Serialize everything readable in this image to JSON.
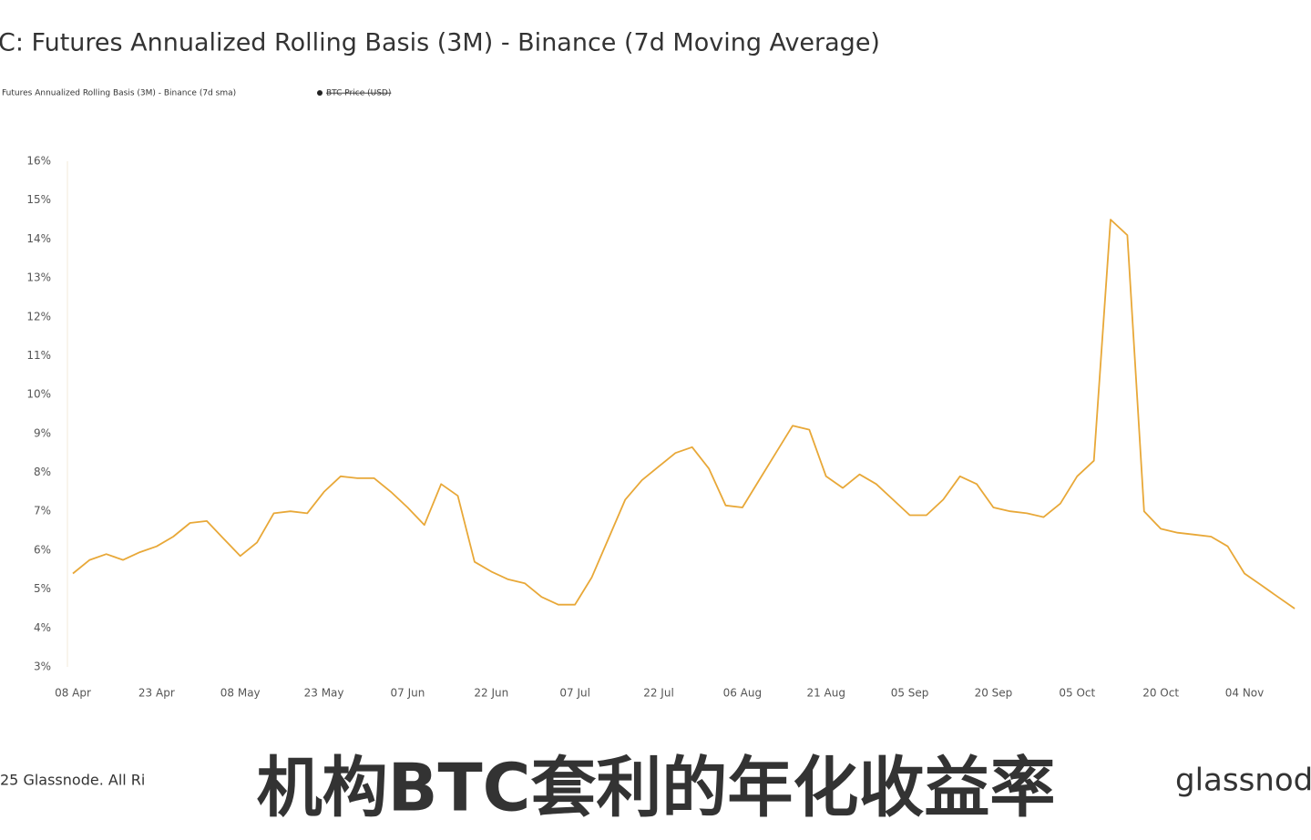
{
  "chart_data": {
    "type": "line",
    "title": "C: Futures Annualized Rolling Basis (3M) - Binance (7d Moving Average)",
    "categories": [
      "08 Apr",
      null,
      null,
      null,
      null,
      "23 Apr",
      null,
      null,
      null,
      null,
      "08 May",
      null,
      null,
      null,
      null,
      "23 May",
      null,
      null,
      null,
      null,
      "07 Jun",
      null,
      null,
      null,
      null,
      "22 Jun",
      null,
      null,
      null,
      null,
      "07 Jul",
      null,
      null,
      null,
      null,
      "22 Jul",
      null,
      null,
      null,
      null,
      "06 Aug",
      null,
      null,
      null,
      null,
      "21 Aug",
      null,
      null,
      null,
      null,
      "05 Sep",
      null,
      null,
      null,
      null,
      "20 Sep",
      null,
      null,
      null,
      null,
      "05 Oct",
      null,
      null,
      null,
      null,
      "20 Oct",
      null,
      null,
      null,
      null,
      "04 Nov",
      null,
      null,
      null
    ],
    "series": [
      {
        "name": "Futures Annualized Rolling Basis (3M) - Binance (7d sma)",
        "color": "#e8a838",
        "values": [
          5.4,
          5.75,
          5.9,
          5.75,
          5.95,
          6.1,
          6.35,
          6.7,
          6.75,
          6.3,
          5.85,
          6.2,
          6.95,
          7.0,
          6.95,
          7.5,
          7.9,
          7.85,
          7.85,
          7.5,
          7.1,
          6.65,
          7.7,
          7.4,
          5.7,
          5.45,
          5.25,
          5.15,
          4.8,
          4.6,
          4.6,
          5.3,
          6.3,
          7.3,
          7.8,
          8.15,
          8.5,
          8.65,
          8.1,
          7.15,
          7.1,
          7.8,
          8.5,
          9.2,
          9.1,
          7.9,
          7.6,
          7.95,
          7.7,
          7.3,
          6.9,
          6.9,
          7.3,
          7.9,
          7.7,
          7.1,
          7.0,
          6.95,
          6.85,
          7.2,
          7.9,
          8.3,
          14.5,
          14.1,
          7.0,
          6.55,
          6.45,
          6.4,
          6.35,
          6.1,
          5.4,
          5.1,
          4.8,
          4.5
        ]
      }
    ],
    "hidden_series": [
      "BTC Price (USD)"
    ],
    "ylim": [
      3,
      16
    ],
    "yticks": [
      {
        "value": 3,
        "label": "3%"
      },
      {
        "value": 4,
        "label": "4%"
      },
      {
        "value": 5,
        "label": "5%"
      },
      {
        "value": 6,
        "label": "6%"
      },
      {
        "value": 7,
        "label": "7%"
      },
      {
        "value": 8,
        "label": "8%"
      },
      {
        "value": 9,
        "label": "9%"
      },
      {
        "value": 10,
        "label": "10%"
      },
      {
        "value": 11,
        "label": "11%"
      },
      {
        "value": 12,
        "label": "12%"
      },
      {
        "value": 13,
        "label": "13%"
      },
      {
        "value": 14,
        "label": "14%"
      },
      {
        "value": 15,
        "label": "15%"
      },
      {
        "value": 16,
        "label": "16%"
      }
    ],
    "grid": false,
    "footer": "25 Glassnode. All Ri",
    "brand": "glassnode",
    "caption": "机构BTC套利的年化收益率"
  }
}
